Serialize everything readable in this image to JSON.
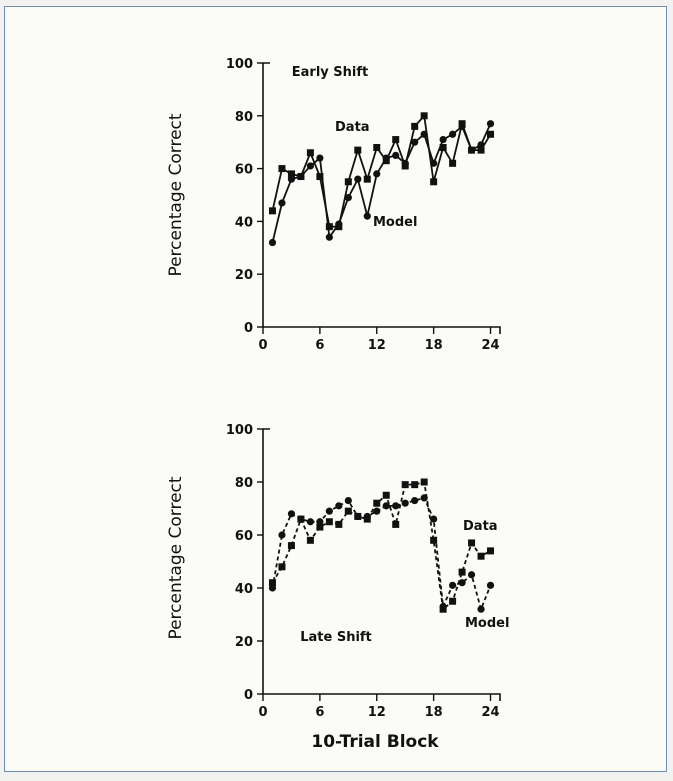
{
  "chart_data": [
    {
      "type": "line",
      "annotation": "Early Shift",
      "ylabel": "Percentage Correct",
      "xlabel": "",
      "xlim": [
        0,
        25
      ],
      "ylim": [
        0,
        100
      ],
      "xticks": [
        "0",
        "6",
        "12",
        "18",
        "24"
      ],
      "yticks": [
        "0",
        "20",
        "40",
        "60",
        "80",
        "100"
      ],
      "line_style": "solid",
      "grid": false,
      "series": [
        {
          "name": "Data",
          "marker": "square",
          "x": [
            1,
            2,
            3,
            4,
            5,
            6,
            7,
            8,
            9,
            10,
            11,
            12,
            13,
            14,
            15,
            16,
            17,
            18,
            19,
            20,
            21,
            22,
            23,
            24
          ],
          "values": [
            44,
            60,
            58,
            57,
            66,
            57,
            38,
            38,
            55,
            67,
            56,
            68,
            63,
            71,
            61,
            76,
            80,
            55,
            68,
            62,
            77,
            67,
            67,
            73
          ]
        },
        {
          "name": "Model",
          "marker": "circle",
          "x": [
            1,
            2,
            3,
            4,
            5,
            6,
            7,
            8,
            9,
            10,
            11,
            12,
            13,
            14,
            15,
            16,
            17,
            18,
            19,
            20,
            21,
            22,
            23,
            24
          ],
          "values": [
            32,
            47,
            56,
            57,
            61,
            64,
            34,
            39,
            49,
            56,
            42,
            58,
            64,
            65,
            62,
            70,
            73,
            62,
            71,
            73,
            76,
            67,
            69,
            77
          ]
        }
      ],
      "labels": [
        {
          "text": "Data",
          "series": "Data"
        },
        {
          "text": "Model",
          "series": "Model"
        }
      ]
    },
    {
      "type": "line",
      "annotation": "Late Shift",
      "ylabel": "Percentage Correct",
      "xlabel": "10-Trial Block",
      "xlim": [
        0,
        25
      ],
      "ylim": [
        0,
        100
      ],
      "xticks": [
        "0",
        "6",
        "12",
        "18",
        "24"
      ],
      "yticks": [
        "0",
        "20",
        "40",
        "60",
        "80",
        "100"
      ],
      "line_style": "dashed",
      "grid": false,
      "series": [
        {
          "name": "Data",
          "marker": "square",
          "x": [
            1,
            2,
            3,
            4,
            5,
            6,
            7,
            8,
            9,
            10,
            11,
            12,
            13,
            14,
            15,
            16,
            17,
            18,
            19,
            20,
            21,
            22,
            23,
            24
          ],
          "values": [
            42,
            48,
            56,
            66,
            58,
            63,
            65,
            64,
            69,
            67,
            66,
            72,
            75,
            64,
            79,
            79,
            80,
            58,
            32,
            35,
            46,
            57,
            52,
            54
          ]
        },
        {
          "name": "Model",
          "marker": "circle",
          "x": [
            1,
            2,
            3,
            4,
            5,
            6,
            7,
            8,
            9,
            10,
            11,
            12,
            13,
            14,
            15,
            16,
            17,
            18,
            19,
            20,
            21,
            22,
            23,
            24
          ],
          "values": [
            40,
            60,
            68,
            66,
            65,
            65,
            69,
            71,
            73,
            67,
            67,
            69,
            71,
            71,
            72,
            73,
            74,
            66,
            33,
            41,
            42,
            45,
            32,
            41
          ]
        }
      ],
      "labels": [
        {
          "text": "Data",
          "series": "Data"
        },
        {
          "text": "Model",
          "series": "Model"
        }
      ]
    }
  ]
}
